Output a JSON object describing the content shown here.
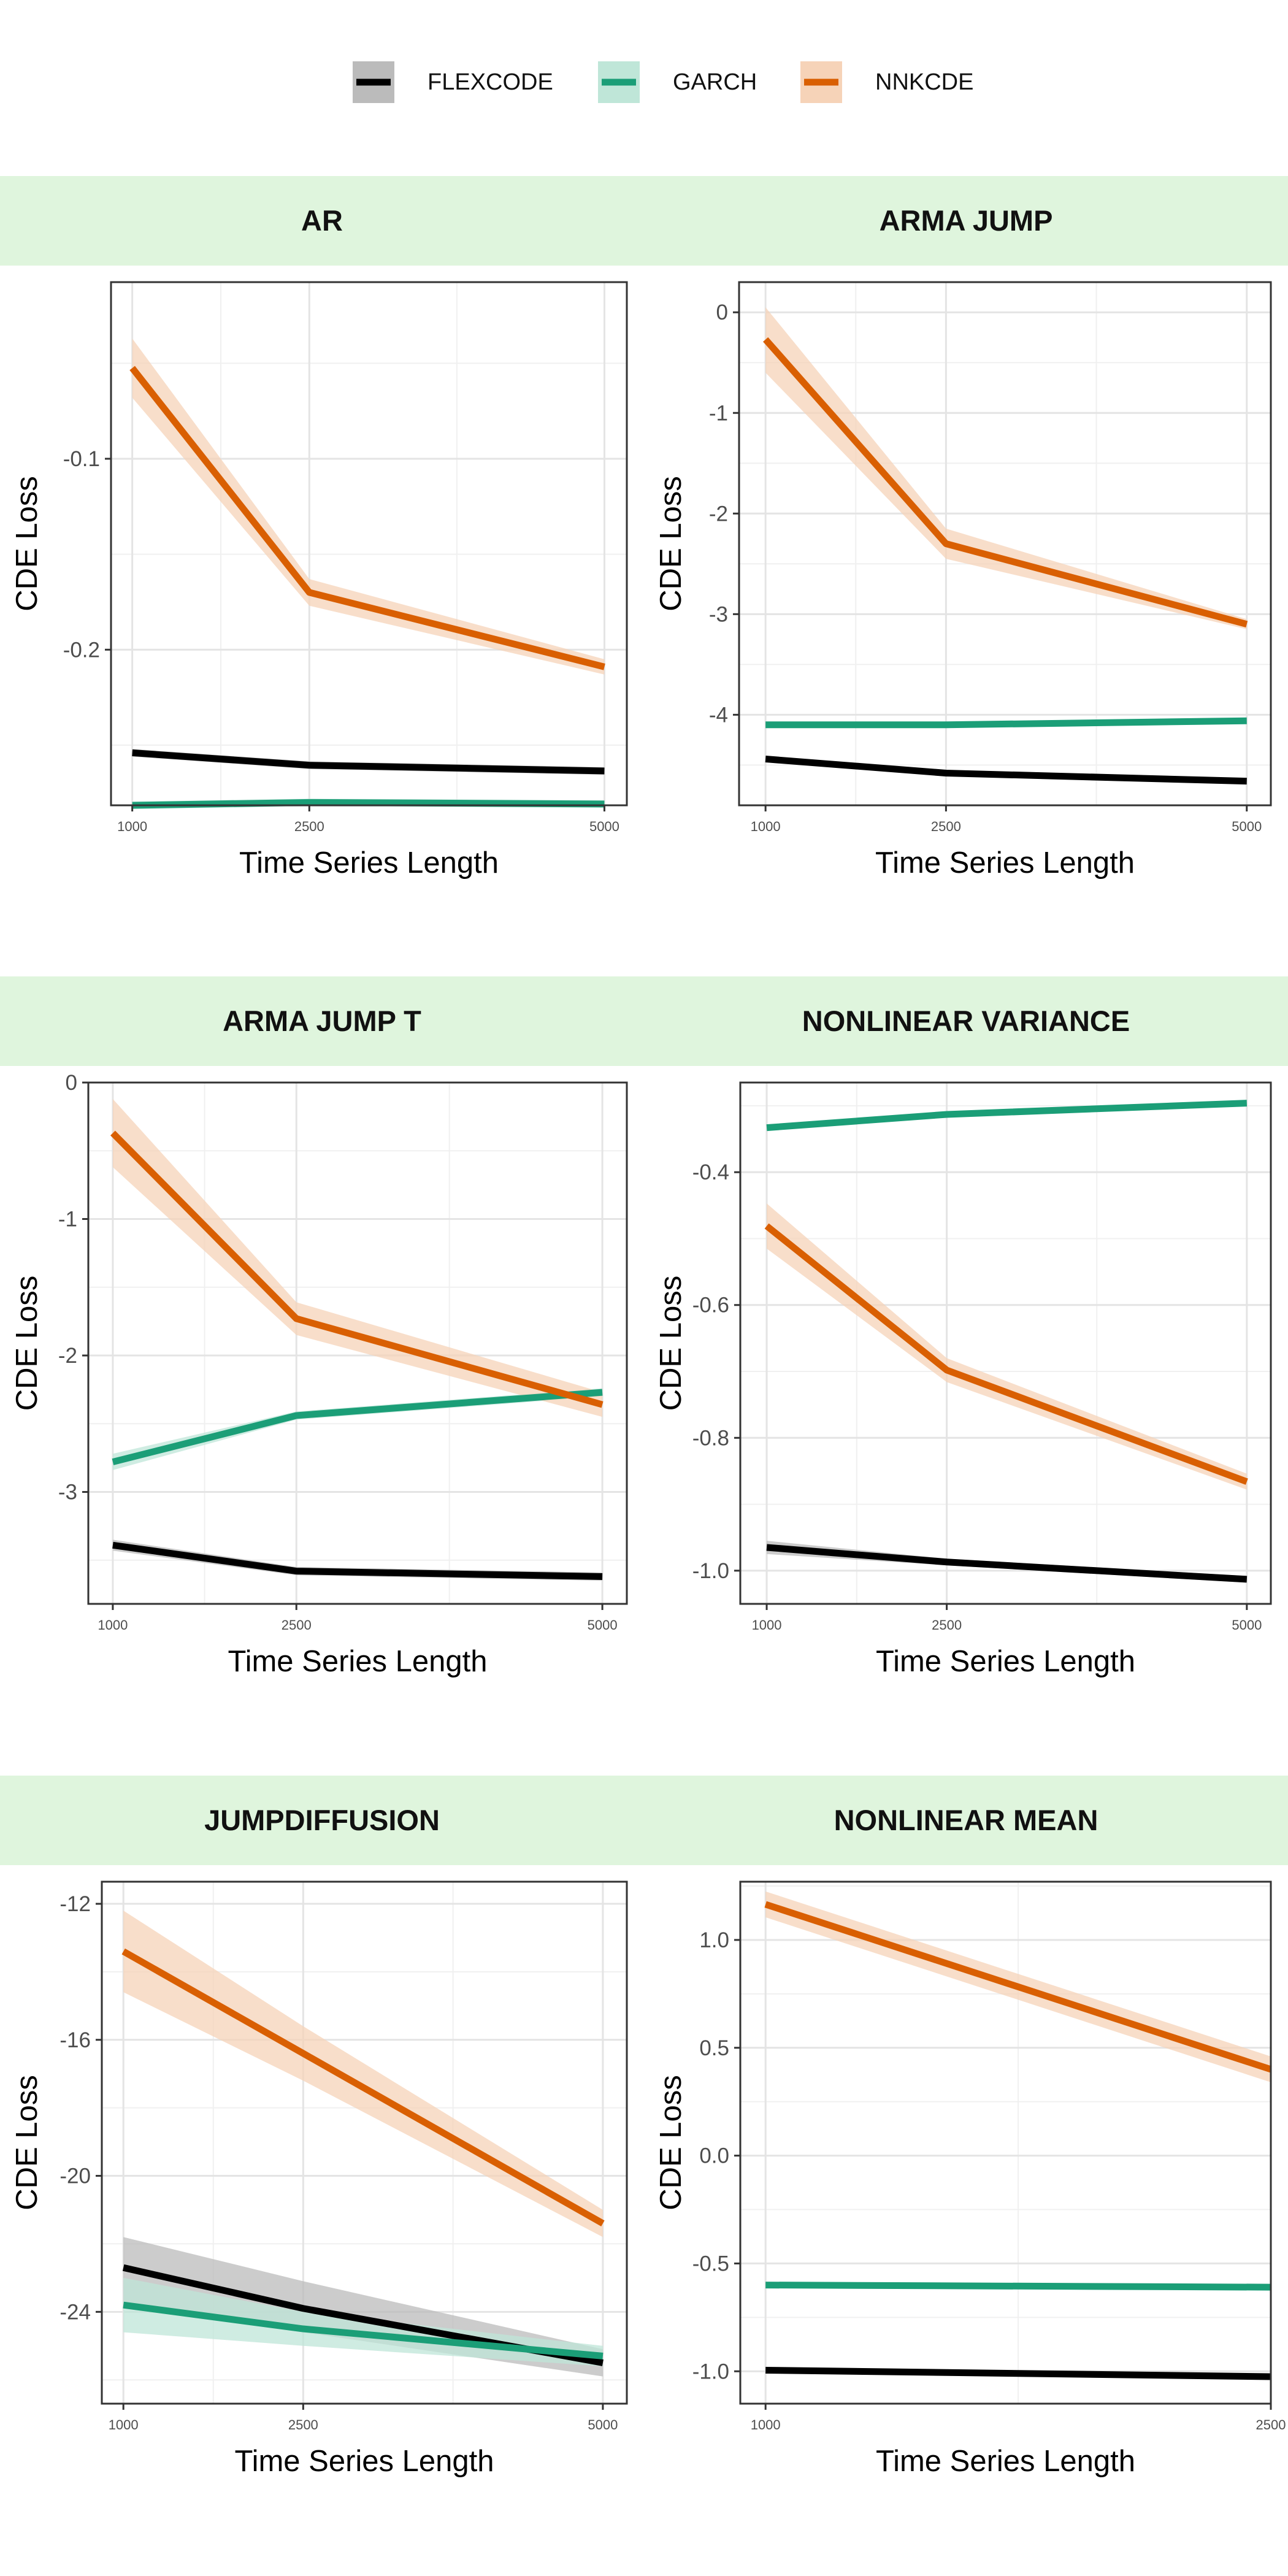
{
  "legend": [
    {
      "name": "FLEXCODE",
      "color": "#000000",
      "band": "#bbbbbb"
    },
    {
      "name": "GARCH",
      "color": "#1b9e77",
      "band": "#bfe6d8"
    },
    {
      "name": "NNKCDE",
      "color": "#d95f02",
      "band": "#f6d3b8"
    }
  ],
  "strip_color": "#dff5dd",
  "chart_data": [
    {
      "type": "line",
      "title": "AR",
      "xlabel": "Time Series Length",
      "ylabel": "CDE Loss",
      "x": [
        1000,
        2500,
        5000
      ],
      "x_ticks": [
        1000,
        2500,
        5000
      ],
      "xlim": [
        820,
        5190
      ],
      "y_ticks": [
        -0.1,
        -0.2
      ],
      "y_tick_labels": [
        "-0.1",
        "-0.2"
      ],
      "ylim": [
        -0.2815,
        -0.0075
      ],
      "grid": true,
      "series": [
        {
          "name": "FLEXCODE",
          "values": [
            -0.254,
            -0.2605,
            -0.2635
          ],
          "lower": [
            -0.256,
            -0.2625,
            -0.2655
          ],
          "upper": [
            -0.252,
            -0.2585,
            -0.2615
          ]
        },
        {
          "name": "GARCH",
          "values": [
            -0.2815,
            -0.28,
            -0.2808
          ],
          "lower": [
            -0.2835,
            -0.282,
            -0.2828
          ],
          "upper": [
            -0.2795,
            -0.278,
            -0.2788
          ]
        },
        {
          "name": "NNKCDE",
          "values": [
            -0.0525,
            -0.17,
            -0.209
          ],
          "lower": [
            -0.068,
            -0.177,
            -0.213
          ],
          "upper": [
            -0.037,
            -0.163,
            -0.205
          ]
        }
      ]
    },
    {
      "type": "line",
      "title": "ARMA JUMP",
      "xlabel": "Time Series Length",
      "ylabel": "CDE Loss",
      "x": [
        1000,
        2500,
        5000
      ],
      "x_ticks": [
        1000,
        2500,
        5000
      ],
      "xlim": [
        780,
        5200
      ],
      "y_ticks": [
        0,
        -1,
        -2,
        -3,
        -4
      ],
      "y_tick_labels": [
        "0",
        "-1",
        "-2",
        "-3",
        "-4"
      ],
      "ylim": [
        -4.9,
        0.3
      ],
      "grid": true,
      "series": [
        {
          "name": "FLEXCODE",
          "values": [
            -4.44,
            -4.58,
            -4.66
          ],
          "lower": [
            -4.47,
            -4.61,
            -4.69
          ],
          "upper": [
            -4.41,
            -4.55,
            -4.63
          ]
        },
        {
          "name": "GARCH",
          "values": [
            -4.1,
            -4.1,
            -4.06
          ],
          "lower": [
            -4.12,
            -4.12,
            -4.08
          ],
          "upper": [
            -4.08,
            -4.08,
            -4.04
          ]
        },
        {
          "name": "NNKCDE",
          "values": [
            -0.27,
            -2.3,
            -3.1
          ],
          "lower": [
            -0.6,
            -2.45,
            -3.15
          ],
          "upper": [
            0.05,
            -2.15,
            -3.05
          ]
        }
      ]
    },
    {
      "type": "line",
      "title": "ARMA JUMP T",
      "xlabel": "Time Series Length",
      "ylabel": "CDE Loss",
      "x": [
        1000,
        2500,
        5000
      ],
      "x_ticks": [
        1000,
        2500,
        5000
      ],
      "xlim": [
        800,
        5200
      ],
      "y_ticks": [
        0,
        -1,
        -2,
        -3
      ],
      "y_tick_labels": [
        "0",
        "-1",
        "-2",
        "-3"
      ],
      "ylim": [
        -3.82,
        0
      ],
      "grid": true,
      "series": [
        {
          "name": "FLEXCODE",
          "values": [
            -3.39,
            -3.58,
            -3.62
          ],
          "lower": [
            -3.43,
            -3.61,
            -3.65
          ],
          "upper": [
            -3.35,
            -3.55,
            -3.59
          ]
        },
        {
          "name": "GARCH",
          "values": [
            -2.78,
            -2.44,
            -2.27
          ],
          "lower": [
            -2.84,
            -2.47,
            -2.3
          ],
          "upper": [
            -2.72,
            -2.41,
            -2.24
          ]
        },
        {
          "name": "NNKCDE",
          "values": [
            -0.37,
            -1.73,
            -2.36
          ],
          "lower": [
            -0.62,
            -1.85,
            -2.45
          ],
          "upper": [
            -0.12,
            -1.61,
            -2.27
          ]
        }
      ]
    },
    {
      "type": "line",
      "title": "NONLINEAR VARIANCE",
      "xlabel": "Time Series Length",
      "ylabel": "CDE Loss",
      "x": [
        1000,
        2500,
        5000
      ],
      "x_ticks": [
        1000,
        2500,
        5000
      ],
      "xlim": [
        780,
        5200
      ],
      "y_ticks": [
        -0.4,
        -0.6,
        -0.8,
        -1.0
      ],
      "y_tick_labels": [
        "-0.4",
        "-0.6",
        "-0.8",
        "-1.0"
      ],
      "ylim": [
        -1.05,
        -0.265
      ],
      "grid": true,
      "series": [
        {
          "name": "FLEXCODE",
          "values": [
            -0.965,
            -0.987,
            -1.013
          ],
          "lower": [
            -0.975,
            -0.992,
            -1.018
          ],
          "upper": [
            -0.955,
            -0.982,
            -1.008
          ]
        },
        {
          "name": "GARCH",
          "values": [
            -0.333,
            -0.313,
            -0.296
          ],
          "lower": [
            -0.337,
            -0.317,
            -0.3
          ],
          "upper": [
            -0.329,
            -0.309,
            -0.292
          ]
        },
        {
          "name": "NNKCDE",
          "values": [
            -0.481,
            -0.698,
            -0.866
          ],
          "lower": [
            -0.515,
            -0.716,
            -0.878
          ],
          "upper": [
            -0.447,
            -0.68,
            -0.854
          ]
        }
      ]
    },
    {
      "type": "line",
      "title": "JUMPDIFFUSION",
      "xlabel": "Time Series Length",
      "ylabel": "CDE Loss",
      "x": [
        1000,
        2500,
        5000
      ],
      "x_ticks": [
        1000,
        2500,
        5000
      ],
      "xlim": [
        820,
        5200
      ],
      "y_ticks": [
        -12,
        -16,
        -20,
        -24
      ],
      "y_tick_labels": [
        "-12",
        "-16",
        "-20",
        "-24"
      ],
      "ylim": [
        -26.7,
        -11.35
      ],
      "grid": true,
      "series": [
        {
          "name": "FLEXCODE",
          "values": [
            -22.7,
            -23.9,
            -25.5
          ],
          "lower": [
            -23.7,
            -24.6,
            -25.9
          ],
          "upper": [
            -21.8,
            -23.1,
            -25.1
          ]
        },
        {
          "name": "GARCH",
          "values": [
            -23.8,
            -24.5,
            -25.3
          ],
          "lower": [
            -24.6,
            -25.0,
            -25.6
          ],
          "upper": [
            -23.0,
            -24.0,
            -25.0
          ]
        },
        {
          "name": "NNKCDE",
          "values": [
            -13.4,
            -16.4,
            -21.4
          ],
          "lower": [
            -14.6,
            -17.2,
            -21.8
          ],
          "upper": [
            -12.2,
            -15.6,
            -21.0
          ]
        }
      ]
    },
    {
      "type": "line",
      "title": "NONLINEAR MEAN",
      "xlabel": "Time Series Length",
      "ylabel": "CDE Loss",
      "x": [
        1000,
        2500
      ],
      "x_ticks": [
        1000,
        2500
      ],
      "xlim": [
        925,
        2500
      ],
      "y_ticks": [
        1.0,
        0.5,
        0.0,
        -0.5,
        -1.0
      ],
      "y_tick_labels": [
        "1.0",
        "0.5",
        "0.0",
        "-0.5",
        "-1.0"
      ],
      "ylim": [
        -1.15,
        1.27
      ],
      "grid": true,
      "series": [
        {
          "name": "FLEXCODE",
          "values": [
            -0.995,
            -1.025
          ],
          "lower": [
            -1.005,
            -1.035
          ],
          "upper": [
            -0.985,
            -1.015
          ]
        },
        {
          "name": "GARCH",
          "values": [
            -0.6,
            -0.61
          ],
          "lower": [
            -0.612,
            -0.622
          ],
          "upper": [
            -0.588,
            -0.598
          ]
        },
        {
          "name": "NNKCDE",
          "values": [
            1.165,
            0.4
          ],
          "lower": [
            1.105,
            0.34
          ],
          "upper": [
            1.225,
            0.46
          ]
        }
      ]
    }
  ]
}
